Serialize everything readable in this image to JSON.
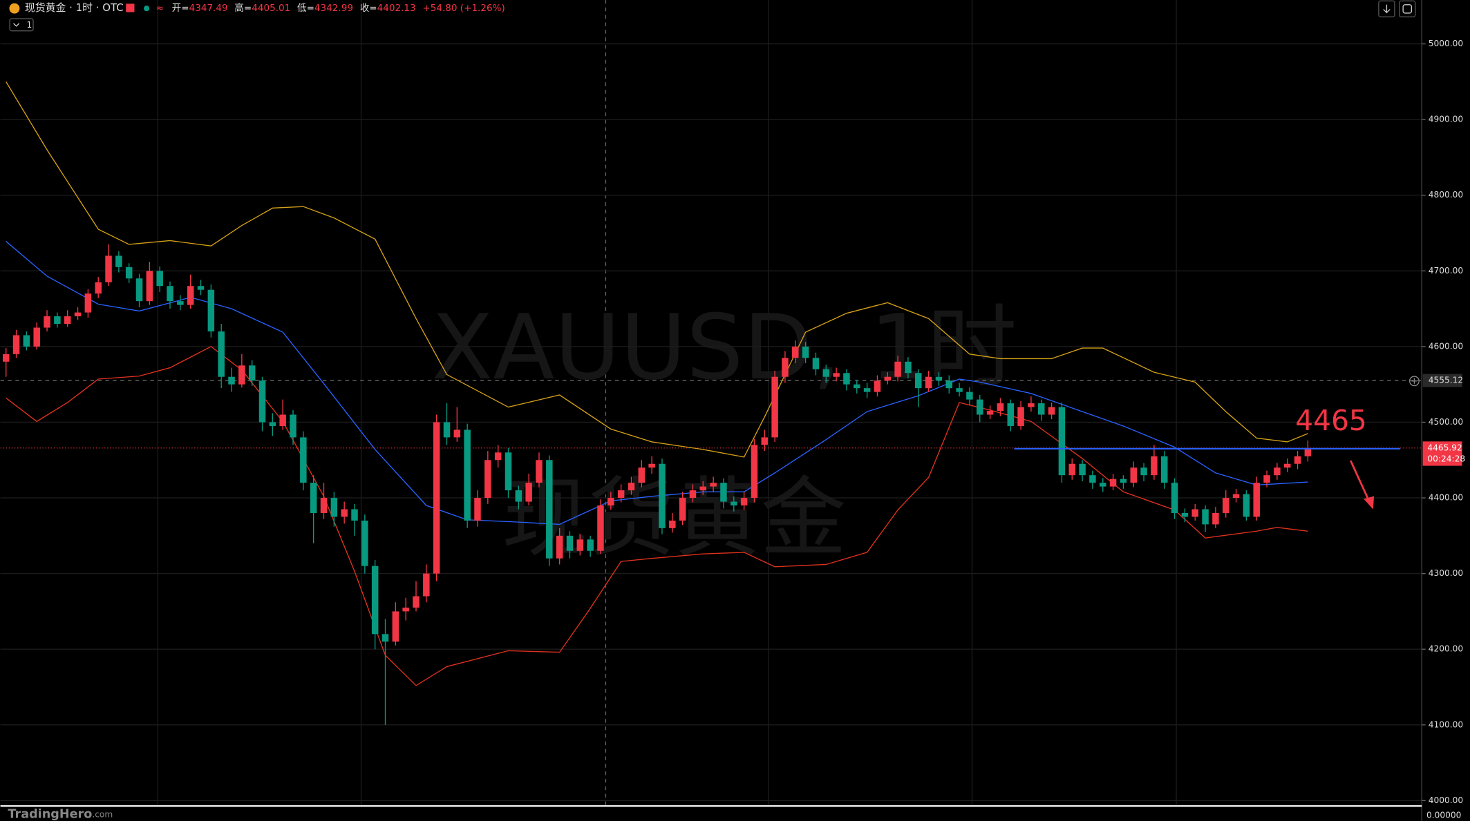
{
  "header": {
    "symbol": "现货黄金 · 1时 · OTC",
    "open_label": "开=",
    "open": "4347.49",
    "high_label": "高=",
    "high": "4405.01",
    "low_label": "低=",
    "low": "4342.99",
    "close_label": "收=",
    "close": "4402.13",
    "change": "+54.80 (+1.26%)",
    "interval_box": "1"
  },
  "watermark": {
    "line1": "XAUUSD, 1时",
    "line2": "现货黄金"
  },
  "footer": {
    "logo": "TradingHero",
    "logo_suffix": ".com",
    "lower_pane_value": "0.00000"
  },
  "chart_data": {
    "type": "candlestick",
    "up_color": "#f23645",
    "down_color": "#089981",
    "ylim": [
      3994,
      5058
    ],
    "yticks": [
      {
        "value": 4000,
        "label": "4000.00"
      },
      {
        "value": 4100,
        "label": "4100.00"
      },
      {
        "value": 4200,
        "label": "4200.00"
      },
      {
        "value": 4300,
        "label": "4300.00"
      },
      {
        "value": 4400,
        "label": "4400.00"
      },
      {
        "value": 4500,
        "label": "4500.00"
      },
      {
        "value": 4600,
        "label": "4600.00"
      },
      {
        "value": 4700,
        "label": "4700.00"
      },
      {
        "value": 4800,
        "label": "4800.00"
      },
      {
        "value": 4900,
        "label": "4900.00"
      },
      {
        "value": 5000,
        "label": "5000.00"
      }
    ],
    "grid": true,
    "ohlc": [
      [
        4580,
        4598,
        4560,
        4590
      ],
      [
        4590,
        4622,
        4585,
        4615
      ],
      [
        4615,
        4620,
        4595,
        4600
      ],
      [
        4600,
        4632,
        4596,
        4625
      ],
      [
        4625,
        4648,
        4620,
        4640
      ],
      [
        4640,
        4645,
        4625,
        4630
      ],
      [
        4630,
        4648,
        4626,
        4640
      ],
      [
        4640,
        4652,
        4635,
        4645
      ],
      [
        4645,
        4676,
        4638,
        4670
      ],
      [
        4670,
        4692,
        4664,
        4685
      ],
      [
        4685,
        4735,
        4680,
        4720
      ],
      [
        4720,
        4726,
        4698,
        4705
      ],
      [
        4705,
        4710,
        4684,
        4690
      ],
      [
        4690,
        4696,
        4652,
        4660
      ],
      [
        4660,
        4712,
        4655,
        4700
      ],
      [
        4700,
        4706,
        4672,
        4680
      ],
      [
        4680,
        4686,
        4650,
        4660
      ],
      [
        4660,
        4668,
        4648,
        4655
      ],
      [
        4655,
        4695,
        4650,
        4680
      ],
      [
        4680,
        4688,
        4668,
        4675
      ],
      [
        4675,
        4682,
        4612,
        4620
      ],
      [
        4620,
        4630,
        4545,
        4560
      ],
      [
        4560,
        4572,
        4540,
        4550
      ],
      [
        4550,
        4590,
        4546,
        4575
      ],
      [
        4575,
        4582,
        4548,
        4555
      ],
      [
        4555,
        4560,
        4488,
        4500
      ],
      [
        4500,
        4512,
        4482,
        4495
      ],
      [
        4495,
        4530,
        4490,
        4510
      ],
      [
        4510,
        4516,
        4470,
        4480
      ],
      [
        4480,
        4488,
        4410,
        4420
      ],
      [
        4420,
        4430,
        4340,
        4380
      ],
      [
        4380,
        4420,
        4372,
        4400
      ],
      [
        4400,
        4408,
        4362,
        4375
      ],
      [
        4375,
        4395,
        4366,
        4385
      ],
      [
        4385,
        4392,
        4350,
        4370
      ],
      [
        4370,
        4378,
        4300,
        4310
      ],
      [
        4310,
        4318,
        4200,
        4220
      ],
      [
        4220,
        4240,
        4100,
        4210
      ],
      [
        4210,
        4262,
        4205,
        4250
      ],
      [
        4250,
        4268,
        4238,
        4255
      ],
      [
        4255,
        4290,
        4250,
        4270
      ],
      [
        4270,
        4312,
        4262,
        4300
      ],
      [
        4300,
        4510,
        4290,
        4500
      ],
      [
        4500,
        4525,
        4470,
        4480
      ],
      [
        4480,
        4520,
        4474,
        4490
      ],
      [
        4490,
        4498,
        4360,
        4370
      ],
      [
        4370,
        4410,
        4362,
        4400
      ],
      [
        4400,
        4462,
        4392,
        4450
      ],
      [
        4450,
        4470,
        4440,
        4460
      ],
      [
        4460,
        4466,
        4400,
        4410
      ],
      [
        4410,
        4416,
        4385,
        4395
      ],
      [
        4395,
        4432,
        4390,
        4420
      ],
      [
        4420,
        4460,
        4414,
        4450
      ],
      [
        4450,
        4456,
        4310,
        4320
      ],
      [
        4320,
        4360,
        4312,
        4350
      ],
      [
        4350,
        4356,
        4320,
        4330
      ],
      [
        4330,
        4352,
        4324,
        4345
      ],
      [
        4345,
        4350,
        4322,
        4330
      ],
      [
        4330,
        4398,
        4326,
        4390
      ],
      [
        4390,
        4408,
        4384,
        4400
      ],
      [
        4400,
        4418,
        4394,
        4410
      ],
      [
        4410,
        4428,
        4404,
        4420
      ],
      [
        4420,
        4450,
        4414,
        4440
      ],
      [
        4440,
        4455,
        4432,
        4445
      ],
      [
        4445,
        4452,
        4352,
        4360
      ],
      [
        4360,
        4380,
        4354,
        4370
      ],
      [
        4370,
        4408,
        4364,
        4400
      ],
      [
        4400,
        4418,
        4394,
        4410
      ],
      [
        4410,
        4422,
        4404,
        4415
      ],
      [
        4415,
        4428,
        4408,
        4420
      ],
      [
        4420,
        4426,
        4386,
        4395
      ],
      [
        4395,
        4402,
        4382,
        4390
      ],
      [
        4390,
        4408,
        4384,
        4400
      ],
      [
        4400,
        4478,
        4394,
        4470
      ],
      [
        4470,
        4490,
        4462,
        4480
      ],
      [
        4480,
        4568,
        4474,
        4560
      ],
      [
        4560,
        4594,
        4552,
        4585
      ],
      [
        4585,
        4608,
        4578,
        4600
      ],
      [
        4600,
        4606,
        4578,
        4585
      ],
      [
        4585,
        4592,
        4562,
        4570
      ],
      [
        4570,
        4576,
        4552,
        4560
      ],
      [
        4560,
        4572,
        4554,
        4565
      ],
      [
        4565,
        4570,
        4542,
        4550
      ],
      [
        4550,
        4556,
        4538,
        4545
      ],
      [
        4545,
        4552,
        4532,
        4540
      ],
      [
        4540,
        4562,
        4534,
        4555
      ],
      [
        4555,
        4566,
        4550,
        4560
      ],
      [
        4560,
        4588,
        4554,
        4580
      ],
      [
        4580,
        4586,
        4558,
        4565
      ],
      [
        4565,
        4570,
        4520,
        4545
      ],
      [
        4545,
        4568,
        4540,
        4560
      ],
      [
        4560,
        4566,
        4548,
        4555
      ],
      [
        4555,
        4562,
        4538,
        4545
      ],
      [
        4545,
        4552,
        4534,
        4540
      ],
      [
        4540,
        4546,
        4522,
        4530
      ],
      [
        4530,
        4536,
        4500,
        4510
      ],
      [
        4510,
        4522,
        4504,
        4515
      ],
      [
        4515,
        4532,
        4508,
        4525
      ],
      [
        4525,
        4530,
        4488,
        4495
      ],
      [
        4495,
        4528,
        4490,
        4520
      ],
      [
        4520,
        4534,
        4514,
        4525
      ],
      [
        4525,
        4530,
        4502,
        4510
      ],
      [
        4510,
        4526,
        4504,
        4520
      ],
      [
        4520,
        4526,
        4420,
        4430
      ],
      [
        4430,
        4452,
        4424,
        4445
      ],
      [
        4445,
        4450,
        4422,
        4430
      ],
      [
        4430,
        4436,
        4412,
        4420
      ],
      [
        4420,
        4426,
        4408,
        4415
      ],
      [
        4415,
        4432,
        4410,
        4425
      ],
      [
        4425,
        4430,
        4412,
        4420
      ],
      [
        4420,
        4448,
        4414,
        4440
      ],
      [
        4440,
        4446,
        4422,
        4430
      ],
      [
        4430,
        4470,
        4424,
        4455
      ],
      [
        4455,
        4462,
        4412,
        4420
      ],
      [
        4420,
        4426,
        4372,
        4380
      ],
      [
        4380,
        4386,
        4368,
        4375
      ],
      [
        4375,
        4392,
        4370,
        4385
      ],
      [
        4385,
        4390,
        4355,
        4365
      ],
      [
        4365,
        4388,
        4360,
        4380
      ],
      [
        4380,
        4410,
        4374,
        4400
      ],
      [
        4400,
        4412,
        4394,
        4405
      ],
      [
        4405,
        4410,
        4370,
        4375
      ],
      [
        4375,
        4428,
        4370,
        4420
      ],
      [
        4420,
        4436,
        4414,
        4430
      ],
      [
        4430,
        4446,
        4424,
        4440
      ],
      [
        4440,
        4452,
        4434,
        4445
      ],
      [
        4445,
        4462,
        4438,
        4455
      ],
      [
        4455,
        4476,
        4448,
        4465.92
      ]
    ],
    "bands": [
      {
        "color": "#d4a017",
        "x": [
          0,
          4,
          9,
          12,
          16,
          20,
          23,
          26,
          29,
          32,
          36,
          40,
          43,
          49,
          54,
          59,
          63,
          68,
          72,
          74,
          78,
          82,
          86,
          90,
          94,
          97,
          102,
          105,
          107,
          112,
          116,
          119,
          122,
          125,
          127
        ],
        "values": [
          4950,
          4860,
          4755,
          4735,
          4740,
          4733,
          4760,
          4783,
          4785,
          4770,
          4742,
          4637,
          4563,
          4520,
          4536,
          4491,
          4474,
          4464,
          4454,
          4507,
          4619,
          4644,
          4658,
          4637,
          4590,
          4584,
          4584,
          4598,
          4598,
          4566,
          4553,
          4514,
          4479,
          4474,
          4485
        ]
      },
      {
        "color": "#2962ff",
        "x": [
          0,
          4,
          9,
          13,
          18,
          22,
          27,
          31,
          36,
          41,
          45,
          50,
          54,
          59,
          63,
          68,
          72,
          75,
          80,
          84,
          89,
          93,
          95,
          100,
          105,
          109,
          114,
          118,
          122,
          127
        ],
        "values": [
          4739,
          4693,
          4656,
          4647,
          4665,
          4650,
          4619,
          4551,
          4464,
          4390,
          4371,
          4368,
          4365,
          4396,
          4402,
          4408,
          4408,
          4433,
          4477,
          4514,
          4535,
          4557,
          4553,
          4538,
          4514,
          4495,
          4467,
          4433,
          4417,
          4421
        ]
      },
      {
        "color": "#e0321e",
        "x": [
          0,
          3,
          6,
          9,
          13,
          16,
          20,
          23,
          27,
          31,
          34,
          37,
          40,
          43,
          49,
          54,
          57,
          60,
          63,
          68,
          72,
          75,
          80,
          84,
          87,
          90,
          93,
          96,
          100,
          105,
          109,
          114,
          117,
          122,
          124,
          127
        ],
        "values": [
          4532,
          4501,
          4526,
          4557,
          4561,
          4572,
          4600,
          4569,
          4501,
          4402,
          4303,
          4192,
          4152,
          4177,
          4198,
          4196,
          4254,
          4316,
          4320,
          4326,
          4328,
          4309,
          4312,
          4328,
          4384,
          4427,
          4526,
          4516,
          4501,
          4452,
          4408,
          4384,
          4347,
          4356,
          4361,
          4356
        ]
      }
    ],
    "crosshair_price": 4555.12,
    "last_price": 4465.92,
    "countdown": "00:24:28",
    "level": 4465,
    "level_color": "#2962ff"
  }
}
